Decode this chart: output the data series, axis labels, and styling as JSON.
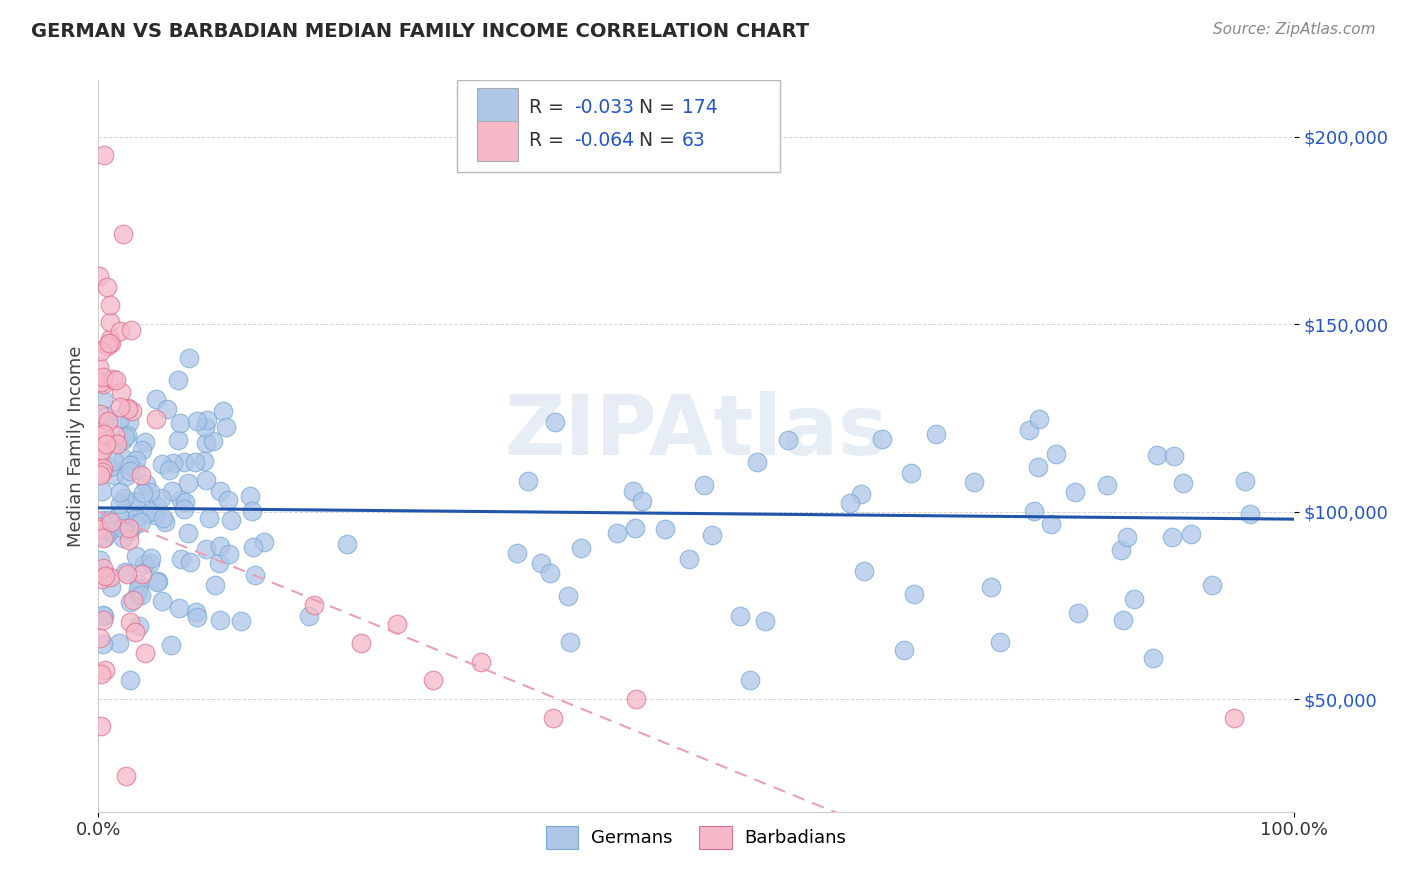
{
  "title": "GERMAN VS BARBADIAN MEDIAN FAMILY INCOME CORRELATION CHART",
  "source_text": "Source: ZipAtlas.com",
  "ylabel": "Median Family Income",
  "xlim": [
    0.0,
    1.0
  ],
  "ylim": [
    20000,
    215000
  ],
  "yticks": [
    50000,
    100000,
    150000,
    200000
  ],
  "ytick_labels": [
    "$50,000",
    "$100,000",
    "$150,000",
    "$200,000"
  ],
  "xticks": [
    0.0,
    1.0
  ],
  "xtick_labels": [
    "0.0%",
    "100.0%"
  ],
  "german_color": "#aec6e8",
  "german_edge": "#7aaad4",
  "barbadian_color": "#f5b8c8",
  "barbadian_edge": "#e07090",
  "german_line_color": "#2255aa",
  "barbadian_line_color": "#e8a0b8",
  "R_german": "-0.033",
  "N_german": "174",
  "R_barbadian": "-0.064",
  "N_barbadian": "63",
  "watermark": "ZIPAtlas",
  "legend_german": "Germans",
  "legend_barbadian": "Barbadians",
  "background_color": "#ffffff",
  "grid_color": "#cccccc",
  "title_color": "#2a2a2a",
  "axis_label_color": "#444444",
  "stats_color": "#2255cc",
  "ytick_color": "#2255cc",
  "label_color": "#333333"
}
